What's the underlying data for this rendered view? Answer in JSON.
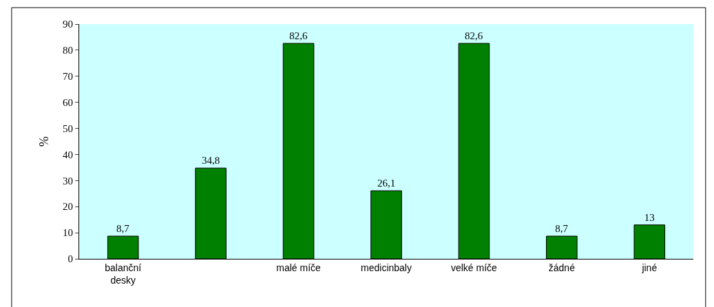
{
  "chart_data": {
    "type": "bar",
    "ylabel": "%",
    "categories": [
      "balanční desky",
      null,
      "malé míče",
      "medicinbaly",
      "velké míče",
      "žádné",
      "jiné"
    ],
    "values": [
      8.7,
      34.8,
      82.6,
      26.1,
      82.6,
      8.7,
      13
    ],
    "value_labels": [
      "8,7",
      "34,8",
      "82,6",
      "26,1",
      "82,6",
      "8,7",
      "13"
    ],
    "color": "#008000",
    "ylim": [
      0,
      90
    ],
    "yticks": [
      0,
      10,
      20,
      30,
      40,
      50,
      60,
      70,
      80,
      90
    ],
    "grid": false,
    "legend": false
  }
}
